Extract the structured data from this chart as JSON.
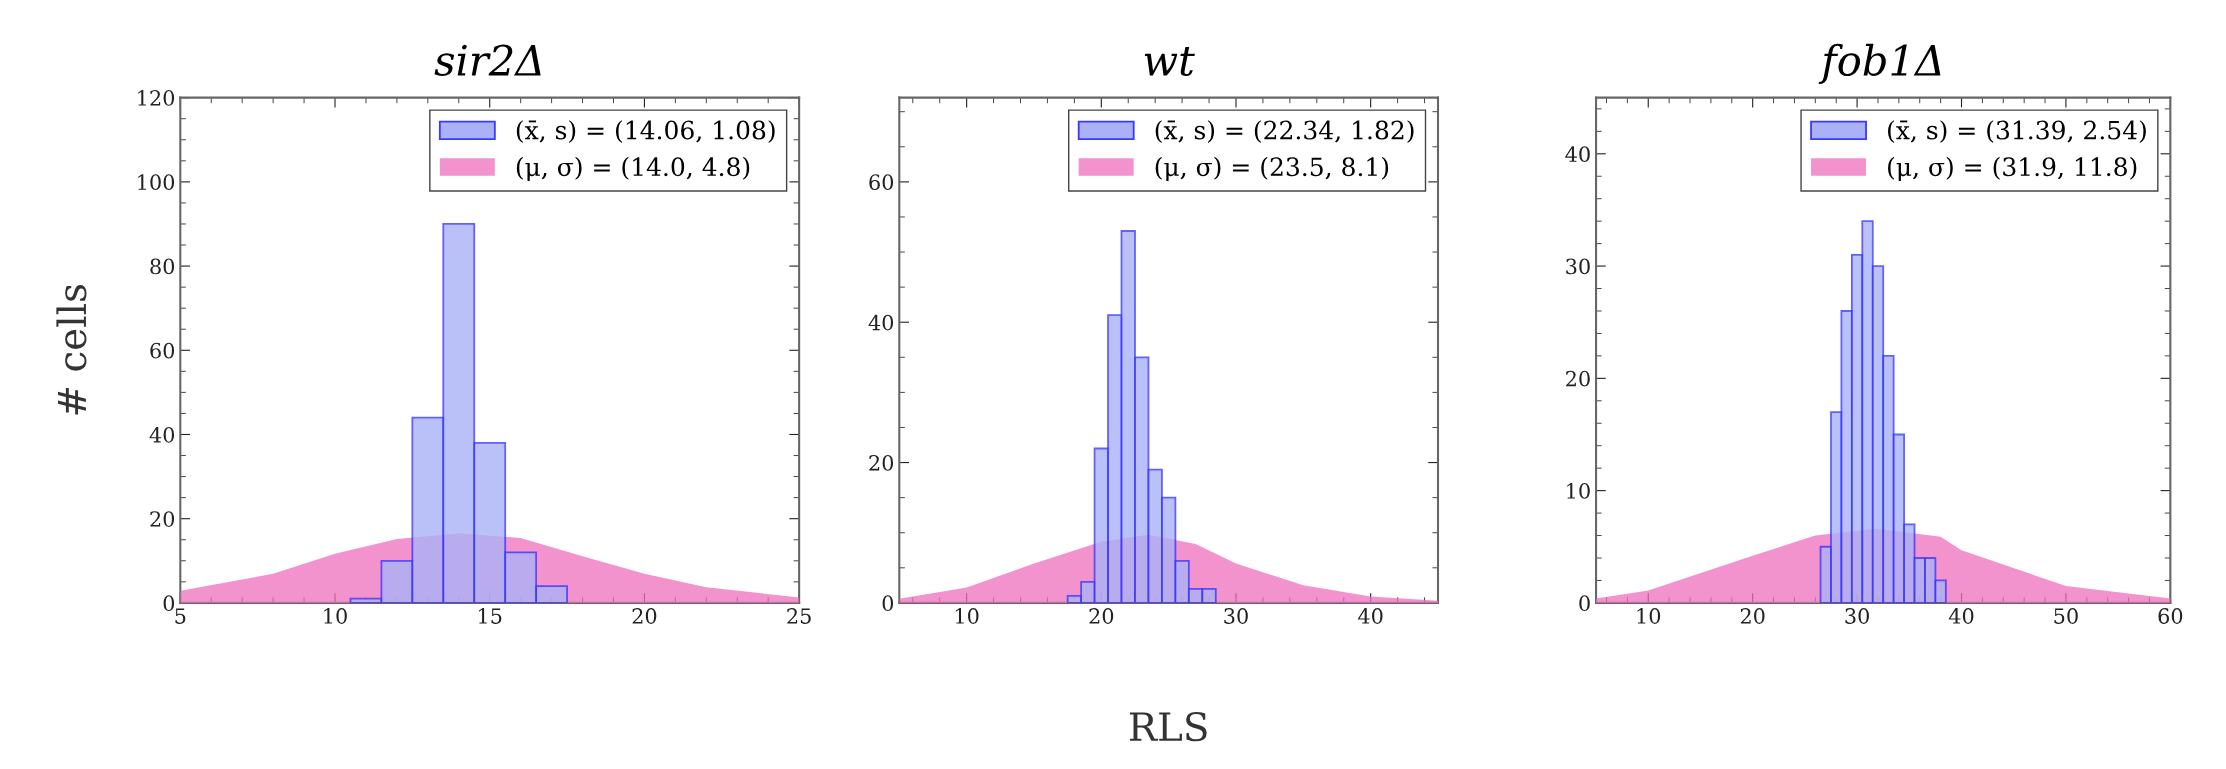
{
  "chart_data": [
    {
      "type": "histogram",
      "title": "sir2Δ",
      "ylabel": "# cells",
      "xlim": [
        5,
        25
      ],
      "xticks": [
        5,
        10,
        15,
        20,
        25
      ],
      "ylim": [
        0,
        120
      ],
      "yticks": [
        0,
        20,
        40,
        60,
        80,
        100,
        120
      ],
      "legend": "top right",
      "grid": false,
      "bins": [
        10.5,
        11.5,
        12.5,
        13.5,
        14.5,
        15.5,
        16.5,
        17.5
      ],
      "series": [
        {
          "type": "histogram",
          "name": "(x̄, s) = (14.06, 1.08)",
          "color": "#aab1f7",
          "values": [
            1,
            10,
            44,
            90,
            38,
            12,
            4
          ]
        },
        {
          "type": "area",
          "name": "(μ, σ) = (14.0, 4.8)",
          "color": "#ee6fbd",
          "x": [
            5,
            8,
            10,
            12,
            14,
            16,
            18,
            20,
            22,
            25
          ],
          "values": [
            2.9,
            6.9,
            11.7,
            15.2,
            16.5,
            15.4,
            11.1,
            6.9,
            3.7,
            1.3
          ]
        }
      ]
    },
    {
      "type": "histogram",
      "title": "wt",
      "xlabel": "RLS",
      "xlim": [
        5,
        45
      ],
      "xticks": [
        10,
        20,
        30,
        40
      ],
      "ylim": [
        0,
        72
      ],
      "yticks": [
        0,
        20,
        40,
        60
      ],
      "legend": "top right",
      "grid": false,
      "bins": [
        17.5,
        18.5,
        19.5,
        20.5,
        21.5,
        22.5,
        23.5,
        24.5,
        25.5,
        26.5,
        27.5,
        28.5
      ],
      "series": [
        {
          "type": "histogram",
          "name": "(x̄, s) = (22.34, 1.82)",
          "color": "#aab1f7",
          "values": [
            1,
            3,
            22,
            41,
            53,
            35,
            19,
            15,
            6,
            2,
            2
          ]
        },
        {
          "type": "area",
          "name": "(μ, σ) = (23.5, 8.1)",
          "color": "#ee6fbd",
          "x": [
            5,
            10,
            15,
            20,
            23.5,
            27,
            30,
            35,
            40,
            45
          ],
          "values": [
            0.6,
            2.2,
            5.6,
            8.7,
            9.7,
            8.4,
            5.6,
            2.5,
            0.9,
            0.3
          ]
        }
      ]
    },
    {
      "type": "histogram",
      "title": "fob1Δ",
      "xlim": [
        5,
        60
      ],
      "xticks": [
        10,
        20,
        30,
        40,
        50,
        60
      ],
      "ylim": [
        0,
        45
      ],
      "yticks": [
        0,
        10,
        20,
        30,
        40
      ],
      "legend": "top right",
      "grid": false,
      "bins": [
        26.5,
        27.5,
        28.5,
        29.5,
        30.5,
        31.5,
        32.5,
        33.5,
        34.5,
        35.5,
        36.5,
        37.5,
        38.5
      ],
      "series": [
        {
          "type": "histogram",
          "name": "(x̄, s) = (31.39, 2.54)",
          "color": "#aab1f7",
          "values": [
            5,
            17,
            26,
            31,
            34,
            30,
            22,
            15,
            7,
            4,
            4,
            2
          ]
        },
        {
          "type": "area",
          "name": "(μ, σ) = (31.9, 11.8)",
          "color": "#ee6fbd",
          "x": [
            5,
            10,
            20,
            26,
            31.9,
            38,
            40,
            50,
            60
          ],
          "values": [
            0.4,
            1.1,
            4.2,
            6.0,
            6.6,
            5.9,
            4.7,
            1.5,
            0.4
          ]
        }
      ]
    }
  ]
}
